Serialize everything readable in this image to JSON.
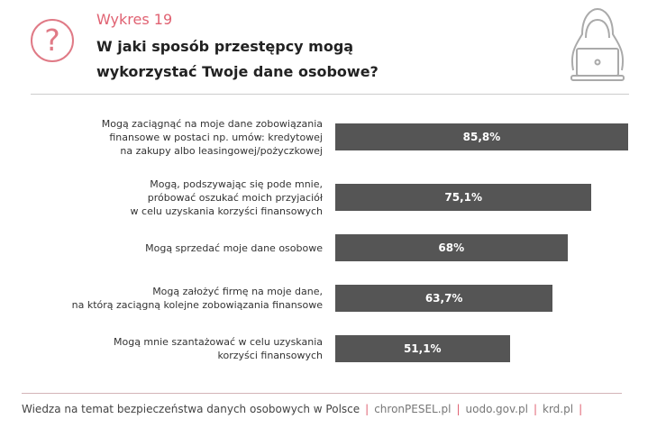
{
  "header": {
    "subtitle": "Wykres 19",
    "title_line1": "W jaki sposób przestępcy mogą",
    "title_line2": "wykorzystać Twoje dane osobowe?",
    "icons": [
      "question-icon",
      "hacker-laptop-icon"
    ]
  },
  "colors": {
    "accent": "#e06272",
    "bar": "#555555"
  },
  "chart_data": {
    "type": "bar",
    "orientation": "horizontal",
    "categories": [
      "Mogą zaciągnąć na moje dane zobowiązania finansowe w postaci np. umów: kredytowej na zakupy albo leasingowej/pożyczkowej",
      "Mogą, podszywając się pode mnie, próbować oszukać moich przyjaciół w celu uzyskania korzyści finansowych",
      "Mogą sprzedać moje dane osobowe",
      "Mogą założyć firmę na moje dane, na którą zaciągną kolejne zobowiązania finansowe",
      "Mogą mnie szantażować w celu uzyskania korzyści finansowych"
    ],
    "category_lines": [
      [
        "Mogą zaciągnąć na moje dane zobowiązania",
        "finansowe w postaci np. umów: kredytowej",
        "na zakupy albo leasingowej/pożyczkowej"
      ],
      [
        "Mogą, podszywając się pode mnie,",
        "próbować oszukać moich przyjaciół",
        "w celu uzyskania korzyści finansowych"
      ],
      [
        "Mogą sprzedać moje dane osobowe"
      ],
      [
        "Mogą założyć firmę na moje dane,",
        "na którą zaciągną kolejne zobowiązania finansowe"
      ],
      [
        "Mogą mnie szantażować w celu uzyskania",
        "korzyści finansowych"
      ]
    ],
    "values": [
      85.8,
      75.1,
      68,
      63.7,
      51.1
    ],
    "data_labels": [
      "85,8%",
      "75,1%",
      "68%",
      "63,7%",
      "51,1%"
    ],
    "grid": false
  },
  "footer": {
    "text": "Wiedza na temat bezpieczeństwa danych osobowych w Polsce",
    "sep": "|",
    "links": [
      "chronPESEL.pl",
      "uodo.gov.pl",
      "krd.pl"
    ]
  }
}
